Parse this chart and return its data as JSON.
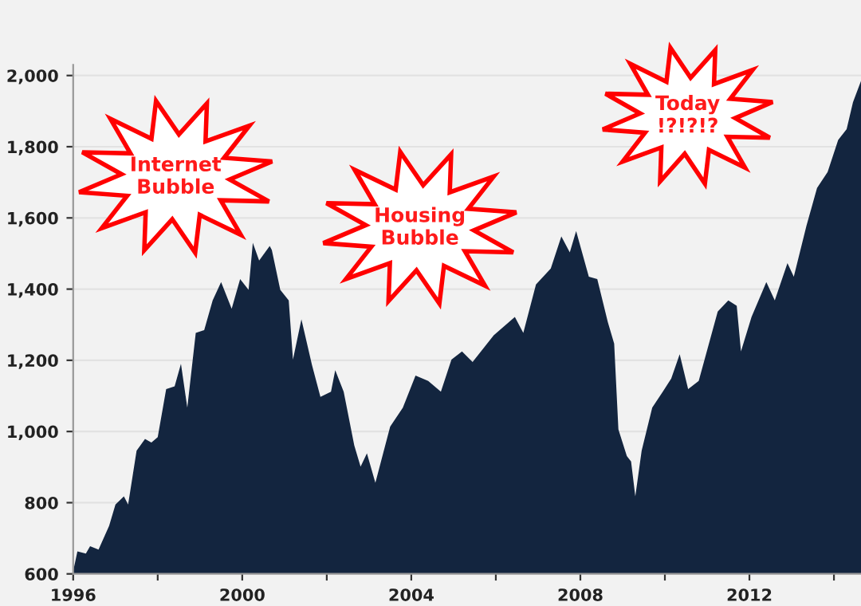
{
  "chart_data": {
    "type": "area",
    "x": [
      1996.0,
      1996.1,
      1996.3,
      1996.4,
      1996.6,
      1996.85,
      1997.0,
      1997.2,
      1997.3,
      1997.5,
      1997.7,
      1997.85,
      1998.0,
      1998.2,
      1998.4,
      1998.55,
      1998.7,
      1998.9,
      1999.1,
      1999.3,
      1999.5,
      1999.75,
      1999.95,
      2000.15,
      2000.25,
      2000.4,
      2000.65,
      2000.7,
      2000.9,
      2001.1,
      2001.2,
      2001.4,
      2001.65,
      2001.85,
      2002.1,
      2002.2,
      2002.4,
      2002.65,
      2002.8,
      2002.95,
      2003.15,
      2003.5,
      2003.8,
      2004.1,
      2004.4,
      2004.7,
      2004.95,
      2005.2,
      2005.45,
      2005.95,
      2006.45,
      2006.65,
      2006.95,
      2007.3,
      2007.55,
      2007.75,
      2007.9,
      2008.2,
      2008.4,
      2008.65,
      2008.8,
      2008.9,
      2009.1,
      2009.2,
      2009.3,
      2009.45,
      2009.7,
      2009.95,
      2010.15,
      2010.35,
      2010.55,
      2010.8,
      2011.25,
      2011.5,
      2011.7,
      2011.8,
      2012.05,
      2012.4,
      2012.6,
      2012.9,
      2013.05,
      2013.35,
      2013.6,
      2013.85,
      2014.1,
      2014.3,
      2014.45,
      2014.64
    ],
    "series": [
      {
        "color": "#13253f",
        "values": [
          607,
          663,
          657,
          678,
          668,
          735,
          795,
          818,
          795,
          946,
          979,
          969,
          984,
          1119,
          1127,
          1190,
          1067,
          1277,
          1285,
          1368,
          1420,
          1345,
          1428,
          1398,
          1530,
          1480,
          1521,
          1510,
          1398,
          1368,
          1202,
          1315,
          1187,
          1097,
          1112,
          1172,
          1112,
          961,
          901,
          939,
          856,
          1014,
          1067,
          1157,
          1142,
          1112,
          1202,
          1225,
          1195,
          1270,
          1322,
          1277,
          1413,
          1458,
          1548,
          1503,
          1563,
          1435,
          1428,
          1307,
          1247,
          1006,
          931,
          916,
          818,
          946,
          1067,
          1112,
          1149,
          1217,
          1119,
          1142,
          1337,
          1368,
          1353,
          1225,
          1322,
          1420,
          1368,
          1473,
          1435,
          1578,
          1684,
          1729,
          1819,
          1849,
          1925,
          1985
        ]
      }
    ],
    "xlim": [
      1996,
      2014.64
    ],
    "xticks": [
      1996,
      {
        "value": 1998,
        "label": null
      },
      2000,
      {
        "value": 2002,
        "label": null
      },
      2004,
      {
        "value": 2006,
        "label": null
      },
      2008,
      {
        "value": 2010,
        "label": null
      },
      2012,
      {
        "value": 2014,
        "label": null
      }
    ],
    "ylim": [
      600,
      2030
    ],
    "yticks": [
      {
        "value": 600,
        "label": "600"
      },
      {
        "value": 800,
        "label": "800"
      },
      {
        "value": 1000,
        "label": "1,000"
      },
      {
        "value": 1200,
        "label": "1,200"
      },
      {
        "value": 1400,
        "label": "1,400"
      },
      {
        "value": 1600,
        "label": "1,600"
      },
      {
        "value": 1800,
        "label": "1,800"
      },
      {
        "value": 2000,
        "label": "2,000"
      }
    ],
    "grid": "y",
    "annotations": [
      "Internet\nBubble",
      "Housing\nBubble",
      "Today\n!?!?!?"
    ]
  }
}
